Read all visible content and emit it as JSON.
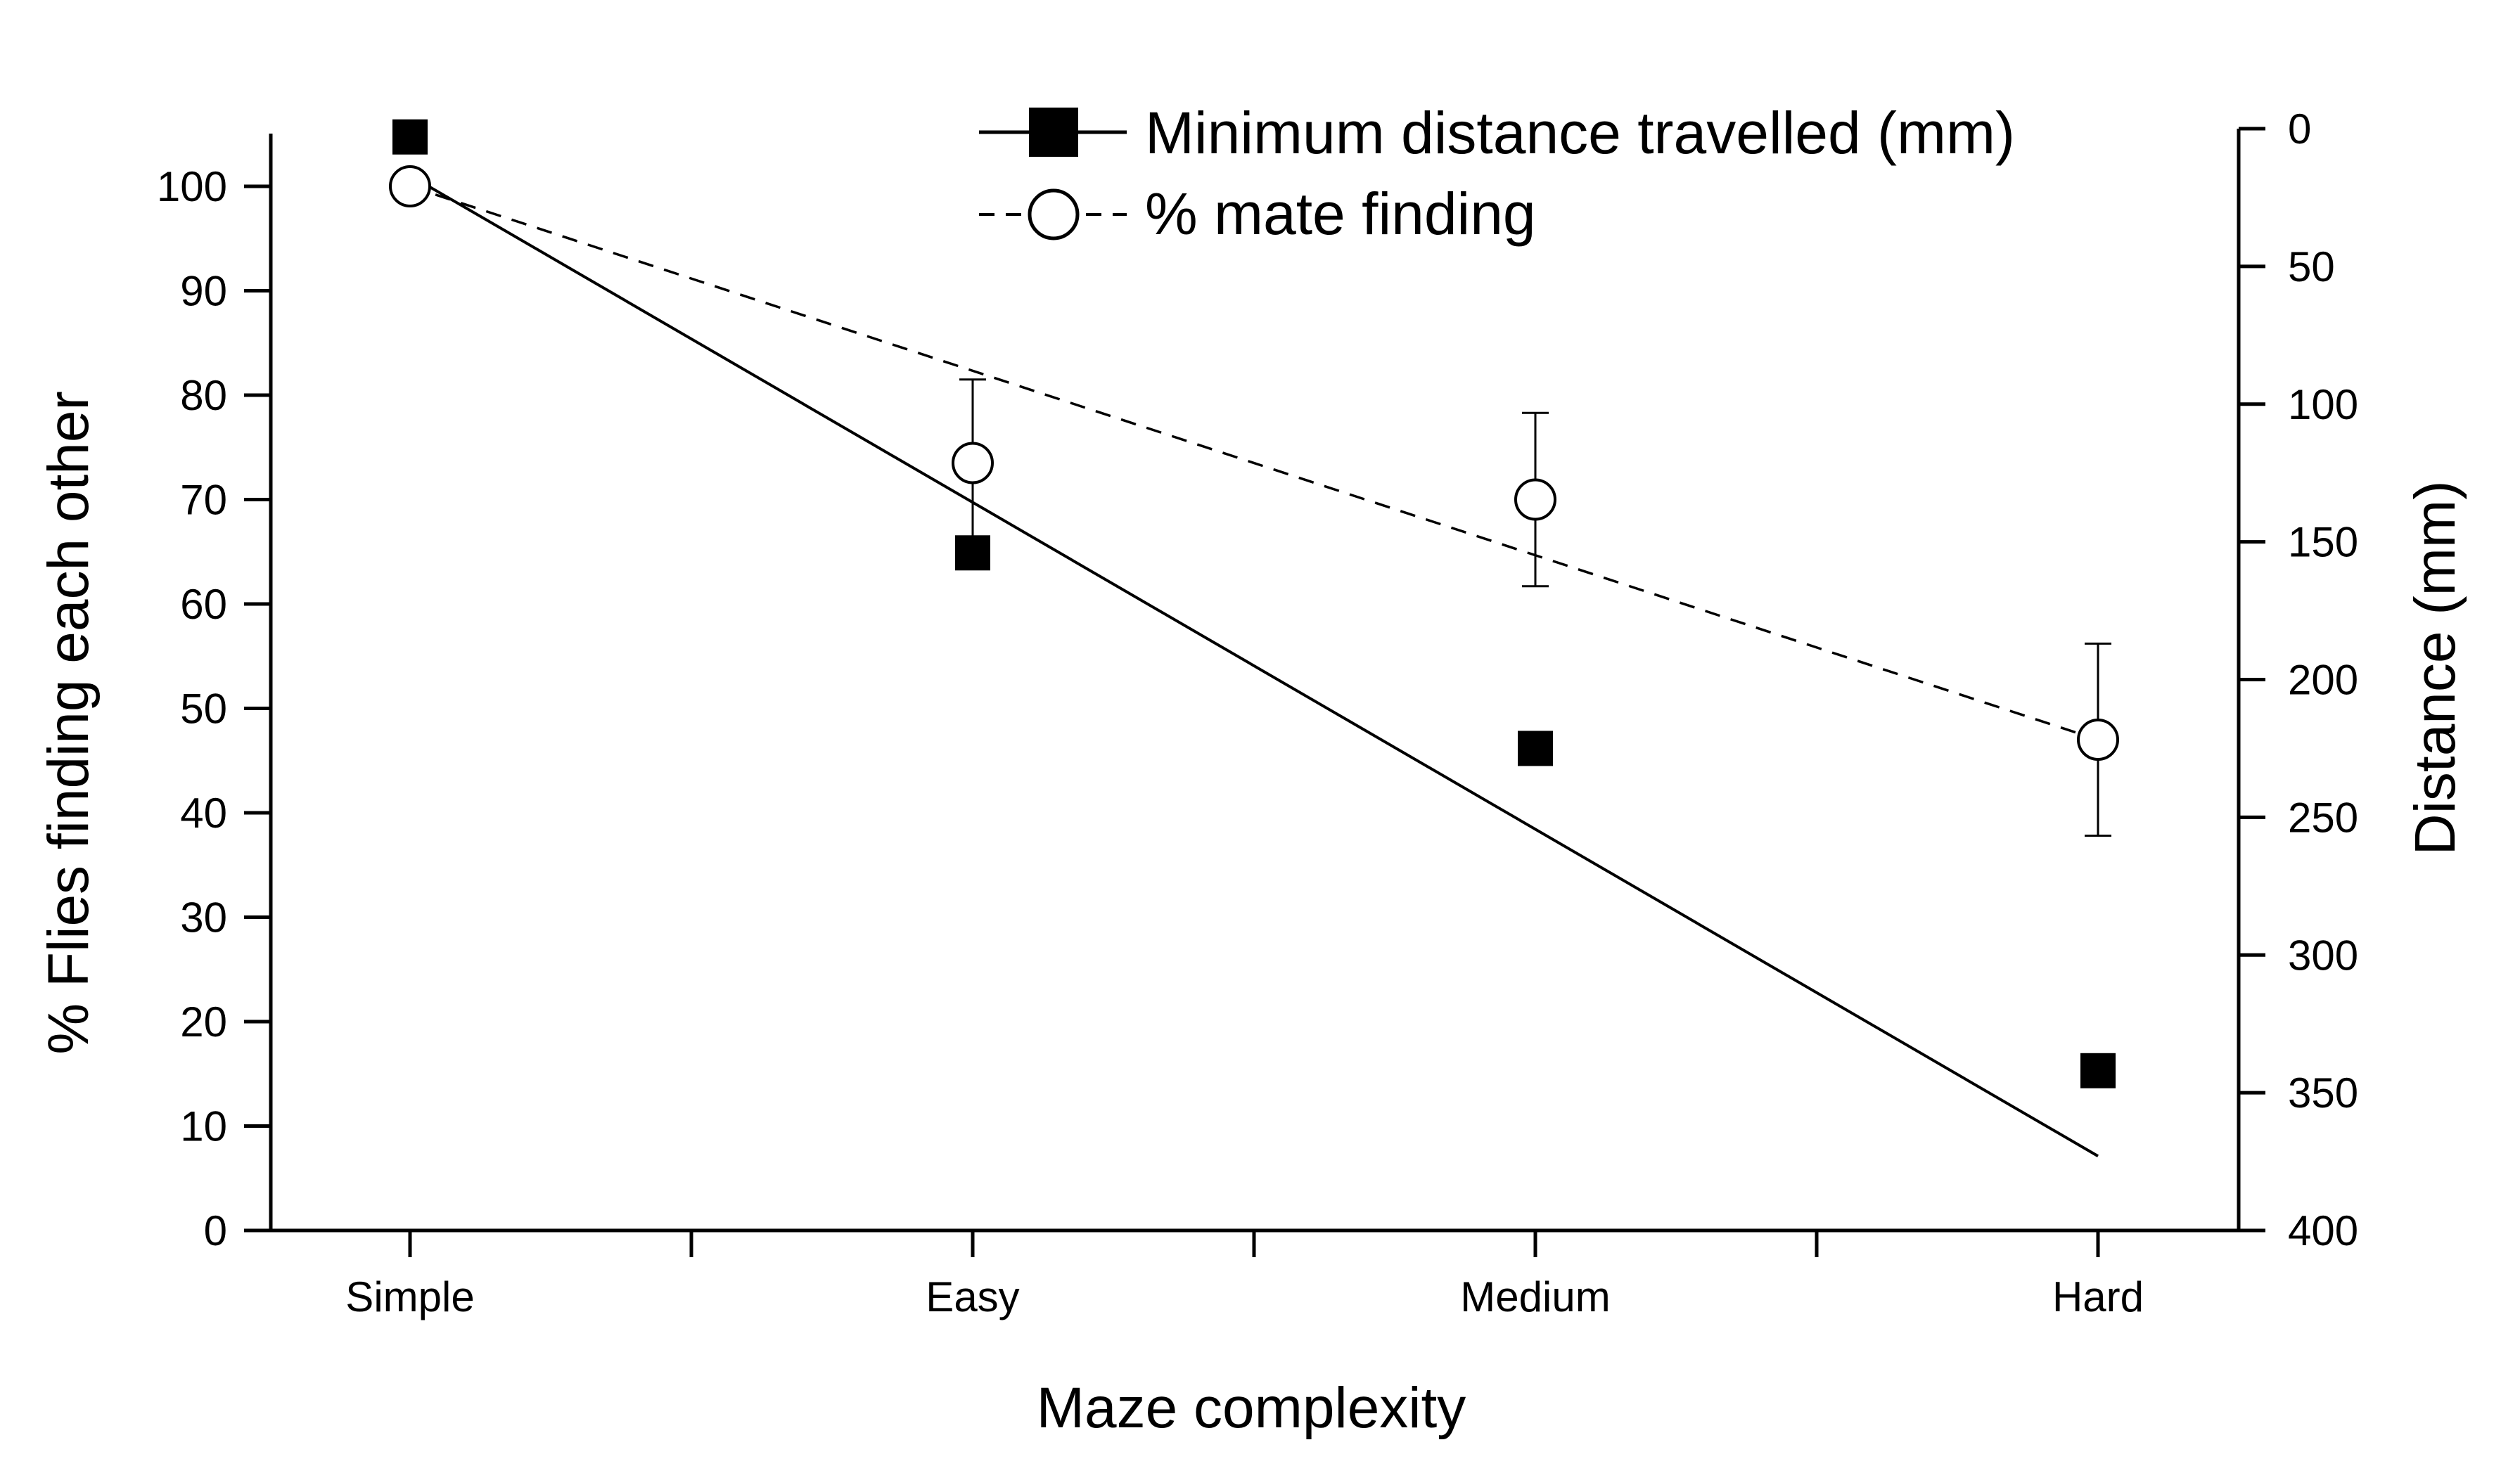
{
  "chart_data": {
    "type": "line",
    "categories": [
      "Simple",
      "Easy",
      "Medium",
      "Hard"
    ],
    "xlabel": "Maze complexity",
    "ylabel_left": "% Flies finding each other",
    "ylabel_right": "Distance (mm)",
    "ylim_left": [
      0,
      100
    ],
    "ylim_right": [
      0,
      400
    ],
    "right_axis_inverted": true,
    "yticks_left": [
      "0",
      "10",
      "20",
      "30",
      "40",
      "50",
      "60",
      "70",
      "80",
      "90",
      "100"
    ],
    "yticks_right": [
      "0",
      "50",
      "100",
      "150",
      "200",
      "250",
      "300",
      "350",
      "400"
    ],
    "grid": false,
    "legend_position": "top-center",
    "series": [
      {
        "name": "Minimum distance travelled (mm)",
        "axis": "right",
        "marker": "filled-square",
        "line": "solid",
        "values": [
          3,
          154,
          225,
          342
        ],
        "fit_line": [
          17,
          373
        ]
      },
      {
        "name": "% mate finding",
        "axis": "left",
        "marker": "open-circle",
        "line": "dashed",
        "values": [
          100,
          73.5,
          70,
          47
        ],
        "error": [
          null,
          8,
          8.3,
          9.2
        ],
        "fit_line": [
          100,
          47
        ]
      }
    ],
    "colors": {
      "axis": "#000000",
      "series_stroke": "#000000",
      "marker_fill_filled": "#000000",
      "marker_fill_open": "#ffffff"
    }
  }
}
